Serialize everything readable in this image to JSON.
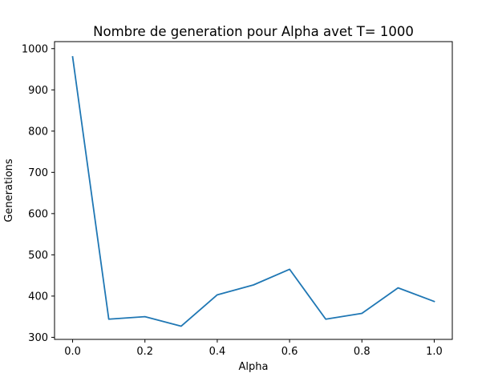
{
  "chart_data": {
    "type": "line",
    "title": "Nombre de generation pour Alpha avet T= 1000",
    "xlabel": "Alpha",
    "ylabel": "Generations",
    "xlim": [
      -0.05,
      1.05
    ],
    "ylim": [
      295,
      1017
    ],
    "xticks": [
      "0.0",
      "0.2",
      "0.4",
      "0.6",
      "0.8",
      "1.0"
    ],
    "yticks": [
      "300",
      "400",
      "500",
      "600",
      "700",
      "800",
      "900",
      "1000"
    ],
    "grid": false,
    "series": [
      {
        "color": "#1f77b4",
        "x": [
          0.0,
          0.1,
          0.2,
          0.3,
          0.4,
          0.5,
          0.6,
          0.7,
          0.8,
          0.9,
          1.0
        ],
        "y": [
          980,
          344,
          350,
          327,
          403,
          427,
          465,
          344,
          358,
          420,
          387
        ]
      }
    ]
  }
}
